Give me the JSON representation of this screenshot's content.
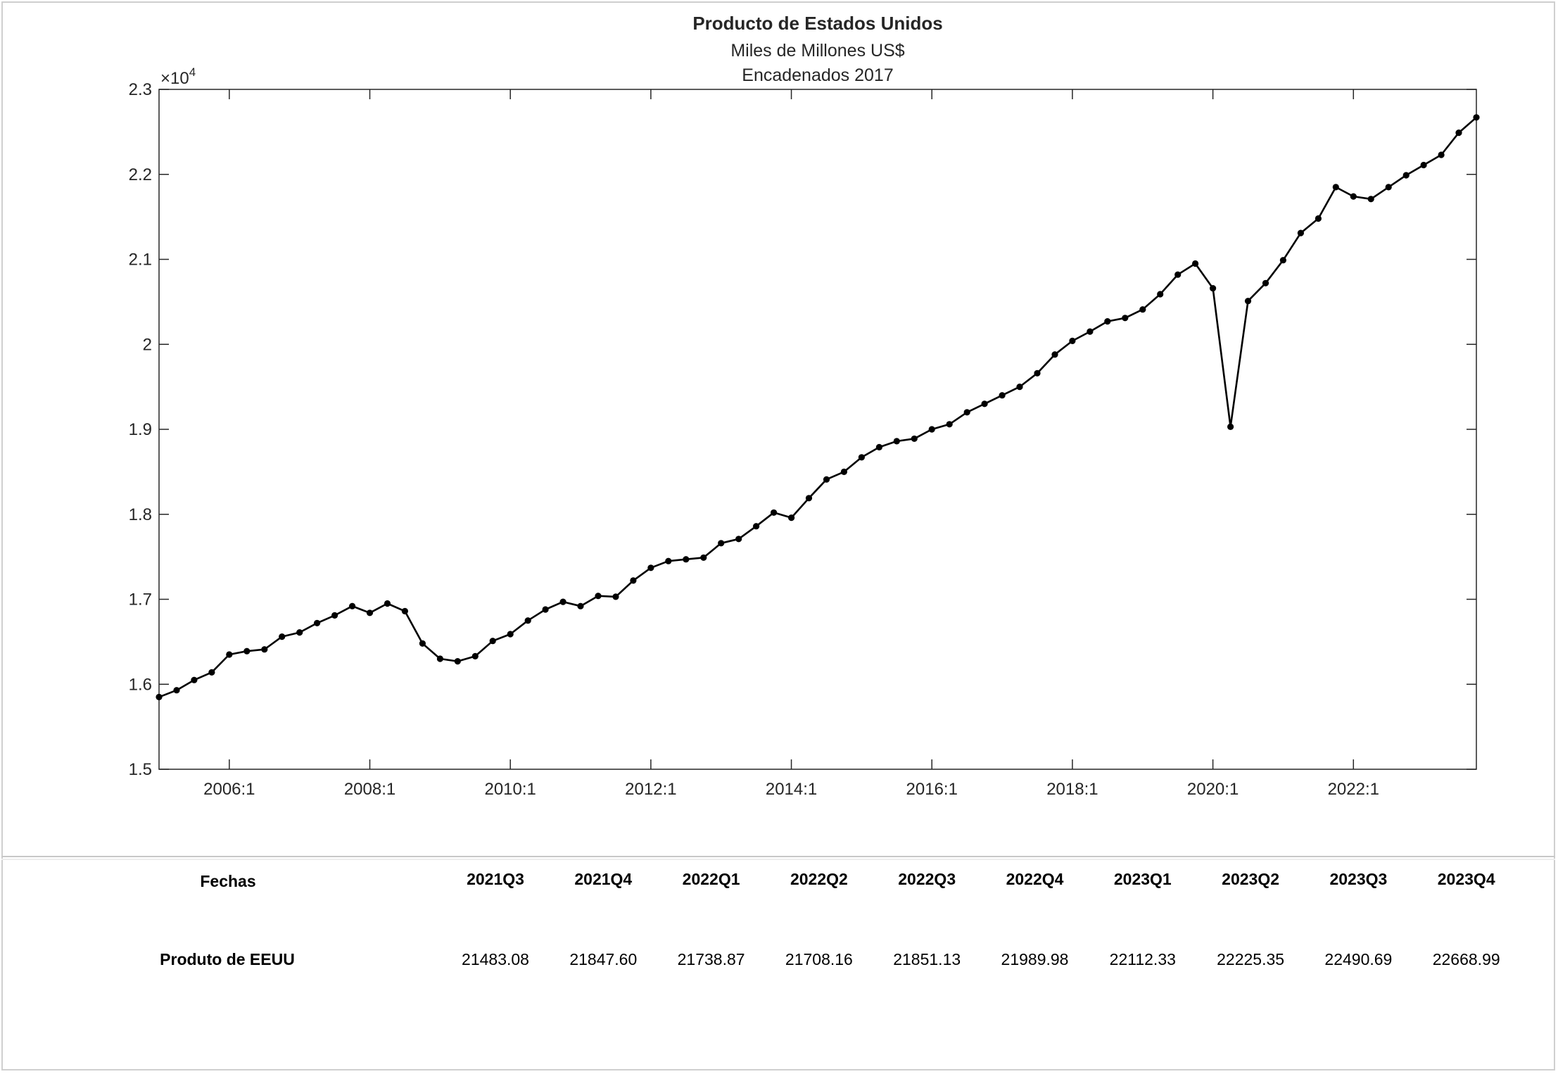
{
  "chart_data": {
    "type": "line",
    "title": "Producto de Estados Unidos",
    "subtitle": [
      "Miles de Millones US$",
      "Encadenados 2017"
    ],
    "xlabel": "",
    "ylabel": "",
    "y_exponent_label": "×10",
    "y_exponent_power": "4",
    "ylim": [
      1.5,
      2.3
    ],
    "yticks": [
      1.5,
      1.6,
      1.7,
      1.8,
      1.9,
      2,
      2.1,
      2.2,
      2.3
    ],
    "ytick_labels": [
      "1.5",
      "1.6",
      "1.7",
      "1.8",
      "1.9",
      "2",
      "2.1",
      "2.2",
      "2.3"
    ],
    "xlim": [
      2005.0,
      2023.75
    ],
    "xticks": [
      2006.0,
      2008.0,
      2010.0,
      2012.0,
      2014.0,
      2016.0,
      2018.0,
      2020.0,
      2022.0
    ],
    "xtick_labels": [
      "2006:1",
      "2008:1",
      "2010:1",
      "2012:1",
      "2014:1",
      "2016:1",
      "2018:1",
      "2020:1",
      "2022:1"
    ],
    "grid": false,
    "legend": "none",
    "series": [
      {
        "color": "#000000",
        "marker": "circle",
        "x": [
          2005.0,
          2005.25,
          2005.5,
          2005.75,
          2006.0,
          2006.25,
          2006.5,
          2006.75,
          2007.0,
          2007.25,
          2007.5,
          2007.75,
          2008.0,
          2008.25,
          2008.5,
          2008.75,
          2009.0,
          2009.25,
          2009.5,
          2009.75,
          2010.0,
          2010.25,
          2010.5,
          2010.75,
          2011.0,
          2011.25,
          2011.5,
          2011.75,
          2012.0,
          2012.25,
          2012.5,
          2012.75,
          2013.0,
          2013.25,
          2013.5,
          2013.75,
          2014.0,
          2014.25,
          2014.5,
          2014.75,
          2015.0,
          2015.25,
          2015.5,
          2015.75,
          2016.0,
          2016.25,
          2016.5,
          2016.75,
          2017.0,
          2017.25,
          2017.5,
          2017.75,
          2018.0,
          2018.25,
          2018.5,
          2018.75,
          2019.0,
          2019.25,
          2019.5,
          2019.75,
          2020.0,
          2020.25,
          2020.5,
          2020.75,
          2021.0,
          2021.25,
          2021.5,
          2021.75,
          2022.0,
          2022.25,
          2022.5,
          2022.75,
          2023.0,
          2023.25,
          2023.5,
          2023.75
        ],
        "values": [
          1.585,
          1.593,
          1.605,
          1.614,
          1.635,
          1.639,
          1.641,
          1.656,
          1.661,
          1.672,
          1.681,
          1.692,
          1.684,
          1.695,
          1.686,
          1.648,
          1.63,
          1.627,
          1.633,
          1.651,
          1.659,
          1.675,
          1.688,
          1.697,
          1.692,
          1.704,
          1.703,
          1.722,
          1.737,
          1.745,
          1.747,
          1.749,
          1.766,
          1.771,
          1.786,
          1.802,
          1.796,
          1.819,
          1.841,
          1.85,
          1.867,
          1.879,
          1.886,
          1.889,
          1.9,
          1.906,
          1.92,
          1.93,
          1.94,
          1.95,
          1.966,
          1.988,
          2.004,
          2.015,
          2.027,
          2.031,
          2.041,
          2.059,
          2.082,
          2.095,
          2.066,
          1.903,
          2.051,
          2.072,
          2.099,
          2.131,
          2.148,
          2.185,
          2.174,
          2.171,
          2.185,
          2.199,
          2.211,
          2.223,
          2.249,
          2.267
        ]
      }
    ]
  },
  "table": {
    "header_label": "Fechas",
    "row_label": "Produto de EEUU",
    "columns": [
      "2021Q3",
      "2021Q4",
      "2022Q1",
      "2022Q2",
      "2022Q3",
      "2022Q4",
      "2023Q1",
      "2023Q2",
      "2023Q3",
      "2023Q4"
    ],
    "values": [
      "21483.08",
      "21847.60",
      "21738.87",
      "21708.16",
      "21851.13",
      "21989.98",
      "22112.33",
      "22225.35",
      "22490.69",
      "22668.99"
    ]
  }
}
